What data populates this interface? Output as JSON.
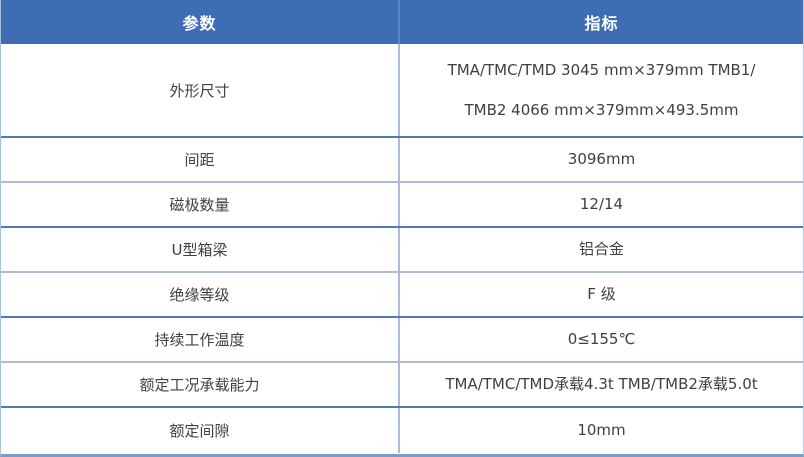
{
  "table": {
    "headers": {
      "param": "参数",
      "value": "指标"
    },
    "rows": [
      {
        "param": "外形尺寸",
        "value": "TMA/TMC/TMD 3045 mm×379mm TMB1/\nTMB2 4066 mm×379mm×493.5mm"
      },
      {
        "param": "间距",
        "value": "3096mm"
      },
      {
        "param": "磁极数量",
        "value": "12/14"
      },
      {
        "param": "U型箱梁",
        "value": "铝合金"
      },
      {
        "param": "绝缘等级",
        "value": "F 级"
      },
      {
        "param": "持续工作温度",
        "value": "0≤155℃"
      },
      {
        "param": "额定工况承载能力",
        "value": "TMA/TMC/TMD承载4.3t TMB/TMB2承载5.0t"
      },
      {
        "param": "额定间隙",
        "value": "10mm"
      }
    ],
    "colors": {
      "header_background": "#3e6db3",
      "header_text": "#ffffff",
      "divider_dark": "#4d7ab8",
      "divider_light": "#aebbd7",
      "outer_bottom_border": "#7f9dc4",
      "body_text": "#404040"
    }
  }
}
